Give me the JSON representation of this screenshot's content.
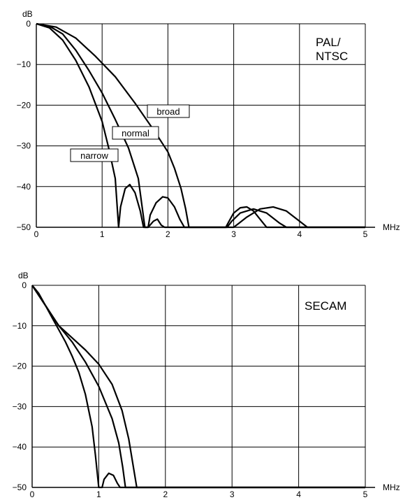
{
  "chart_data": [
    {
      "type": "line",
      "system_label_lines": [
        "PAL/",
        "NTSC"
      ],
      "ylabel": "dB",
      "xlabel": "MHz",
      "xlim": [
        0,
        5
      ],
      "ylim": [
        -50,
        0
      ],
      "x_ticks": [
        "0",
        "1",
        "2",
        "3",
        "4",
        "5"
      ],
      "y_ticks": [
        "0",
        "−10",
        "−20",
        "−30",
        "−40",
        "−50"
      ],
      "grid": true,
      "series": [
        {
          "name": "narrow",
          "points": [
            [
              0,
              0
            ],
            [
              0.2,
              -1
            ],
            [
              0.4,
              -4
            ],
            [
              0.6,
              -9
            ],
            [
              0.8,
              -15.5
            ],
            [
              1.0,
              -24
            ],
            [
              1.1,
              -30.5
            ],
            [
              1.2,
              -38
            ],
            [
              1.25,
              -50
            ],
            [
              1.25,
              -50
            ],
            [
              1.28,
              -45
            ],
            [
              1.35,
              -40.5
            ],
            [
              1.42,
              -39.5
            ],
            [
              1.5,
              -41.5
            ],
            [
              1.58,
              -46
            ],
            [
              1.63,
              -50
            ],
            [
              1.63,
              -50
            ],
            [
              1.7,
              -50
            ],
            [
              1.78,
              -48.5
            ],
            [
              1.84,
              -48
            ],
            [
              1.9,
              -49.5
            ],
            [
              1.95,
              -50
            ],
            [
              2.5,
              -50
            ],
            [
              2.8,
              -50
            ],
            [
              2.88,
              -50
            ],
            [
              2.93,
              -48.5
            ],
            [
              3.0,
              -46.5
            ],
            [
              3.1,
              -45.2
            ],
            [
              3.2,
              -45
            ],
            [
              3.3,
              -46
            ],
            [
              3.4,
              -48
            ],
            [
              3.5,
              -50
            ],
            [
              5,
              -50
            ]
          ]
        },
        {
          "name": "normal",
          "points": [
            [
              0,
              0
            ],
            [
              0.2,
              -0.6
            ],
            [
              0.4,
              -2.5
            ],
            [
              0.6,
              -6.5
            ],
            [
              0.8,
              -11.5
            ],
            [
              1.0,
              -17
            ],
            [
              1.2,
              -23.5
            ],
            [
              1.4,
              -30.5
            ],
            [
              1.55,
              -38
            ],
            [
              1.65,
              -50
            ],
            [
              1.65,
              -50
            ],
            [
              1.7,
              -50
            ],
            [
              1.73,
              -47
            ],
            [
              1.82,
              -44
            ],
            [
              1.92,
              -42.5
            ],
            [
              2.0,
              -42.8
            ],
            [
              2.1,
              -45
            ],
            [
              2.18,
              -48
            ],
            [
              2.25,
              -50
            ],
            [
              2.6,
              -50
            ],
            [
              2.9,
              -50
            ],
            [
              2.97,
              -48.5
            ],
            [
              3.1,
              -46.5
            ],
            [
              3.3,
              -45.5
            ],
            [
              3.5,
              -46.5
            ],
            [
              3.7,
              -49
            ],
            [
              3.8,
              -50
            ],
            [
              5,
              -50
            ]
          ]
        },
        {
          "name": "broad",
          "points": [
            [
              0,
              0
            ],
            [
              0.3,
              -0.8
            ],
            [
              0.6,
              -3.5
            ],
            [
              0.9,
              -8
            ],
            [
              1.2,
              -13
            ],
            [
              1.5,
              -19.5
            ],
            [
              1.8,
              -26.5
            ],
            [
              2.0,
              -31.5
            ],
            [
              2.1,
              -35.5
            ],
            [
              2.2,
              -40.5
            ],
            [
              2.27,
              -45.5
            ],
            [
              2.32,
              -50
            ],
            [
              2.32,
              -50
            ],
            [
              3.0,
              -50
            ],
            [
              3.08,
              -49
            ],
            [
              3.2,
              -47.5
            ],
            [
              3.4,
              -45.5
            ],
            [
              3.6,
              -45
            ],
            [
              3.8,
              -46
            ],
            [
              4.0,
              -48.5
            ],
            [
              4.12,
              -50
            ],
            [
              5,
              -50
            ]
          ]
        }
      ]
    },
    {
      "type": "line",
      "system_label_lines": [
        "SECAM"
      ],
      "ylabel": "dB",
      "xlabel": "MHz",
      "xlim": [
        0,
        5
      ],
      "ylim": [
        -50,
        0
      ],
      "x_ticks": [
        "0",
        "1",
        "2",
        "3",
        "4",
        "5"
      ],
      "y_ticks": [
        "0",
        "−10",
        "−20",
        "−30",
        "−40",
        "−50"
      ],
      "grid": true,
      "series": [
        {
          "points": [
            [
              0,
              0
            ],
            [
              0.1,
              -2
            ],
            [
              0.2,
              -5
            ],
            [
              0.3,
              -8
            ],
            [
              0.4,
              -11
            ],
            [
              0.5,
              -14
            ],
            [
              0.6,
              -17.5
            ],
            [
              0.7,
              -21.5
            ],
            [
              0.8,
              -27
            ],
            [
              0.9,
              -35
            ],
            [
              0.95,
              -42
            ],
            [
              1.0,
              -50
            ],
            [
              1.0,
              -50
            ],
            [
              1.05,
              -50
            ],
            [
              1.08,
              -48
            ],
            [
              1.15,
              -46.5
            ],
            [
              1.22,
              -47
            ],
            [
              1.28,
              -49
            ],
            [
              1.32,
              -50
            ],
            [
              5,
              -50
            ]
          ]
        },
        {
          "points": [
            [
              0,
              0
            ],
            [
              0.1,
              -2.5
            ],
            [
              0.2,
              -5
            ],
            [
              0.3,
              -7.5
            ],
            [
              0.4,
              -10
            ],
            [
              0.6,
              -14
            ],
            [
              0.8,
              -19
            ],
            [
              1.0,
              -25
            ],
            [
              1.2,
              -33
            ],
            [
              1.3,
              -39
            ],
            [
              1.36,
              -45
            ],
            [
              1.4,
              -50
            ],
            [
              5,
              -50
            ]
          ]
        },
        {
          "points": [
            [
              0,
              0
            ],
            [
              0.1,
              -2.5
            ],
            [
              0.2,
              -5
            ],
            [
              0.3,
              -7.5
            ],
            [
              0.4,
              -10
            ],
            [
              0.6,
              -13
            ],
            [
              0.8,
              -16
            ],
            [
              1.0,
              -19.5
            ],
            [
              1.2,
              -24.5
            ],
            [
              1.35,
              -31
            ],
            [
              1.45,
              -38
            ],
            [
              1.52,
              -45
            ],
            [
              1.57,
              -50
            ],
            [
              5,
              -50
            ]
          ]
        }
      ]
    }
  ]
}
